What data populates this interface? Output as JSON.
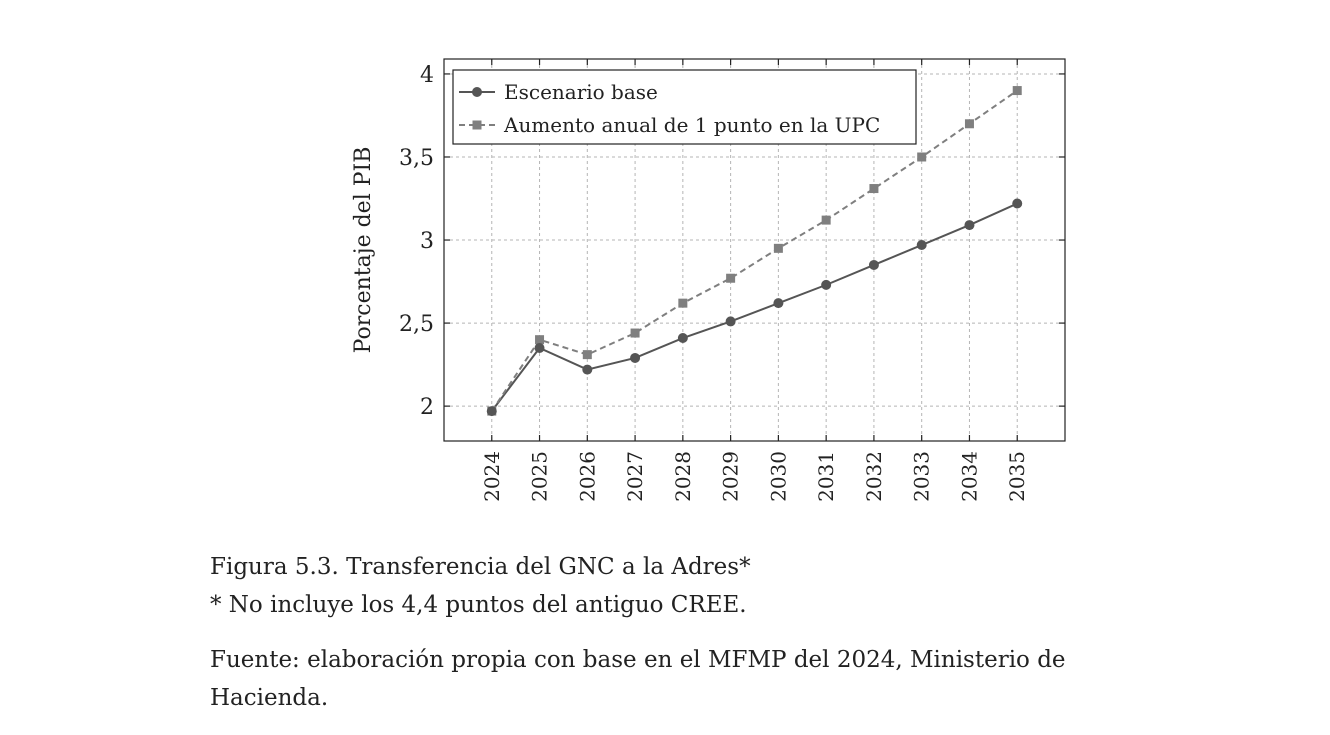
{
  "chart_data": {
    "type": "line",
    "x": [
      2024,
      2025,
      2026,
      2027,
      2028,
      2029,
      2030,
      2031,
      2032,
      2033,
      2034,
      2035
    ],
    "series": [
      {
        "name": "Escenario base",
        "values": [
          1.97,
          2.35,
          2.22,
          2.29,
          2.41,
          2.51,
          2.62,
          2.73,
          2.85,
          2.97,
          3.09,
          3.22
        ],
        "color": "#555555",
        "marker": "circle",
        "dash": "solid"
      },
      {
        "name": "Aumento anual de 1 punto en la UPC",
        "values": [
          1.97,
          2.4,
          2.31,
          2.44,
          2.62,
          2.77,
          2.95,
          3.12,
          3.31,
          3.5,
          3.7,
          3.9
        ],
        "color": "#7f7f7f",
        "marker": "square",
        "dash": "dashed"
      }
    ],
    "ylabel": "Porcentaje del PIB",
    "ylim": [
      1.79,
      4.09
    ],
    "yticks": [
      2,
      2.5,
      3,
      3.5,
      4
    ],
    "ytick_labels": [
      "2",
      "2,5",
      "3",
      "3,5",
      "4"
    ],
    "xtick_labels": [
      "2024",
      "2025",
      "2026",
      "2027",
      "2028",
      "2029",
      "2030",
      "2031",
      "2032",
      "2033",
      "2034",
      "2035"
    ],
    "xlim": [
      2023,
      2036
    ],
    "grid": true,
    "legend_position": "top-left"
  },
  "caption": {
    "figure_title": "Figura 5.3. Transferencia del GNC a la Adres*",
    "footnote": "* No incluye los 4,4 puntos del antiguo CREE."
  },
  "source": {
    "line1": "Fuente: elaboración propia con base en el MFMP del 2024, Ministerio de",
    "line2": "Hacienda."
  }
}
